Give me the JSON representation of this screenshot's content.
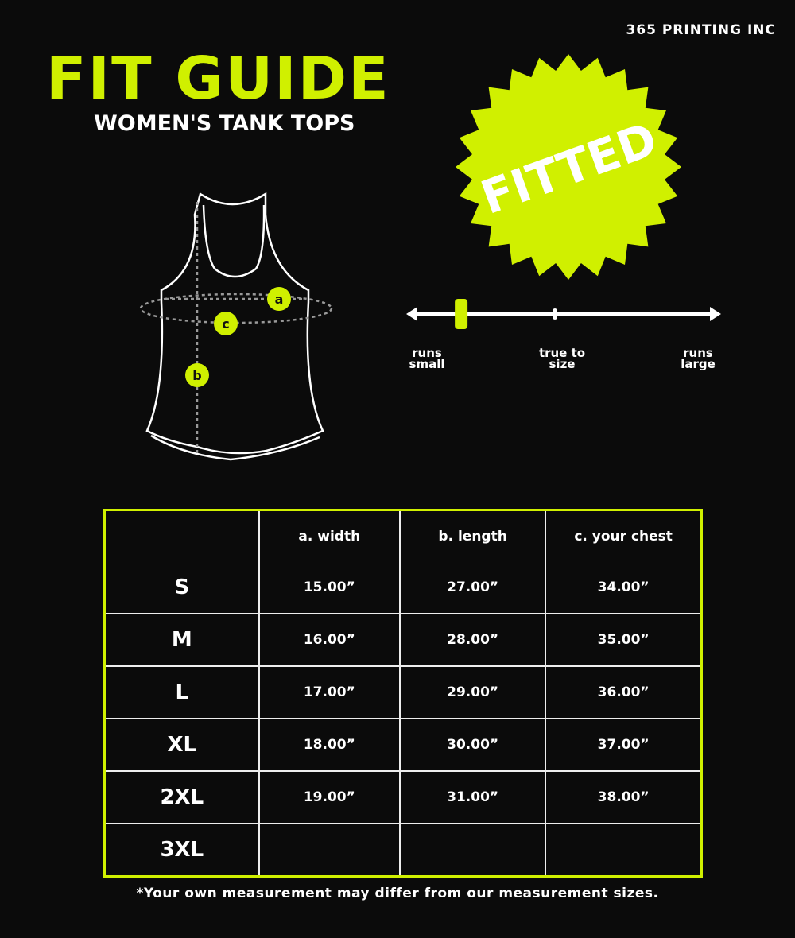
{
  "brand": "365 PRINTING INC",
  "title": "FIT GUIDE",
  "subtitle": "WOMEN'S TANK TOPS",
  "badge": {
    "text": "FITTED",
    "color": "#d0f000"
  },
  "diagram": {
    "labels": [
      "a",
      "b",
      "c"
    ]
  },
  "fit_scale": {
    "left": "runs\nsmall",
    "center": "true to\nsize",
    "right": "runs\nlarge",
    "marker_position": 0.16
  },
  "table": {
    "headers": [
      "",
      "a. width",
      "b. length",
      "c. your chest"
    ],
    "rows": [
      [
        "S",
        "15.00”",
        "27.00”",
        "34.00”"
      ],
      [
        "M",
        "16.00”",
        "28.00”",
        "35.00”"
      ],
      [
        "L",
        "17.00”",
        "29.00”",
        "36.00”"
      ],
      [
        "XL",
        "18.00”",
        "30.00”",
        "37.00”"
      ],
      [
        "2XL",
        "19.00”",
        "31.00”",
        "38.00”"
      ],
      [
        "3XL",
        "",
        "",
        ""
      ]
    ]
  },
  "note": "*Your own measurement may differ from our measurement sizes.",
  "colors": {
    "accent": "#d0f000",
    "background": "#0b0b0b"
  }
}
